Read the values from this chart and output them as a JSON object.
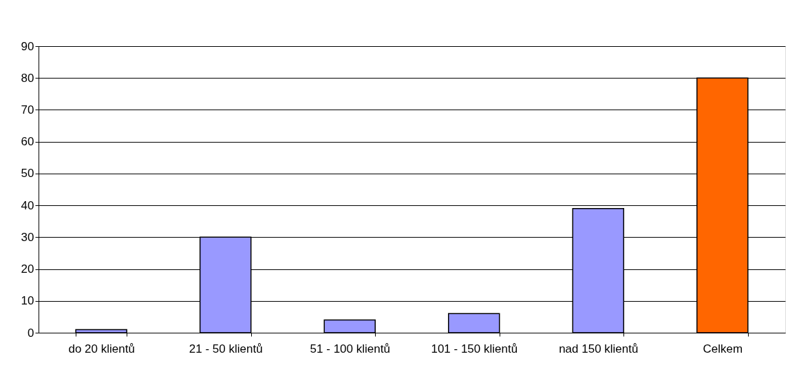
{
  "chart_data": {
    "type": "bar",
    "categories": [
      "do 20 klientů",
      "21 - 50 klientů",
      "51 - 100 klientů",
      "101 - 150 klientů",
      "nad 150 klientů",
      "Celkem"
    ],
    "values": [
      1,
      30,
      4,
      6,
      39,
      80
    ],
    "colors": [
      "#9999ff",
      "#9999ff",
      "#9999ff",
      "#9999ff",
      "#9999ff",
      "#ff6600"
    ],
    "ylim": [
      0,
      90
    ],
    "yticks": [
      0,
      10,
      20,
      30,
      40,
      50,
      60,
      70,
      80,
      90
    ],
    "grid": "y",
    "legend": false
  }
}
